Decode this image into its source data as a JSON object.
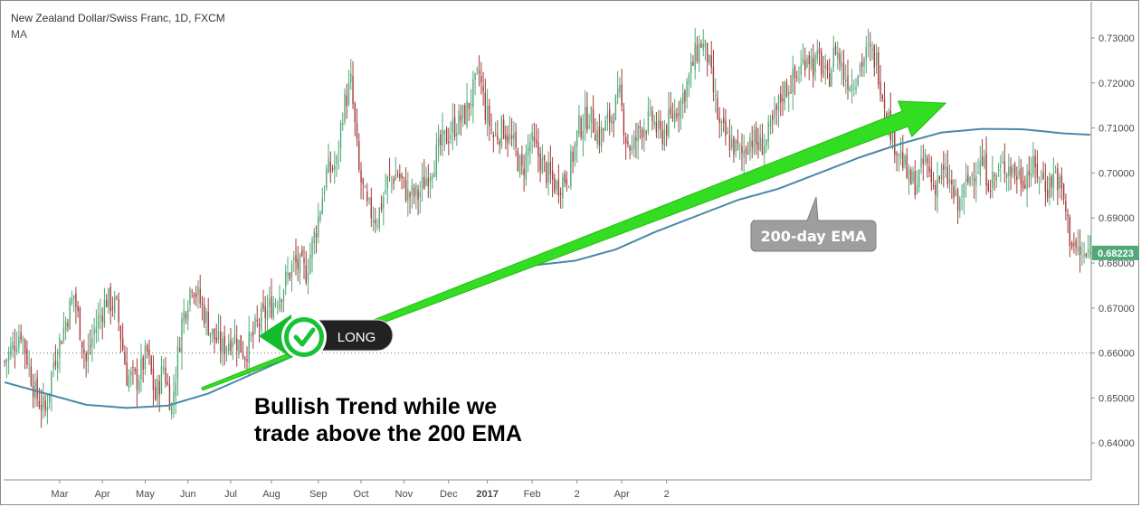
{
  "header": {
    "title": "New Zealand Dollar/Swiss Franc, 1D, FXCM",
    "indicator": "MA"
  },
  "colors": {
    "bull_candle": "#53a878",
    "bear_candle": "#a33b3b",
    "ema_line": "#4a88a8",
    "trend_arrow": "#33dd22",
    "price_badge": "#53a878",
    "callout": "#9e9e9e"
  },
  "chart_data": {
    "type": "candlestick",
    "ylim": [
      0.6355,
      0.7325
    ],
    "y_ticks": [
      "0.73000",
      "0.72000",
      "0.71000",
      "0.70000",
      "0.69000",
      "0.68000",
      "0.67000",
      "0.66000",
      "0.65000",
      "0.64000"
    ],
    "x_tick_labels": [
      "Mar",
      "Apr",
      "May",
      "Jun",
      "Jul",
      "Aug",
      "Sep",
      "Oct",
      "Nov",
      "Dec",
      "2017",
      "Feb",
      "2",
      "Apr",
      "2"
    ],
    "last_price": "0.68223",
    "reference_level": 0.66,
    "close_path": [
      {
        "d": 0,
        "v": 0.658
      },
      {
        "d": 8,
        "v": 0.665
      },
      {
        "d": 15,
        "v": 0.651
      },
      {
        "d": 20,
        "v": 0.647
      },
      {
        "d": 24,
        "v": 0.658
      },
      {
        "d": 34,
        "v": 0.673
      },
      {
        "d": 40,
        "v": 0.658
      },
      {
        "d": 44,
        "v": 0.665
      },
      {
        "d": 50,
        "v": 0.672
      },
      {
        "d": 55,
        "v": 0.67
      },
      {
        "d": 60,
        "v": 0.655
      },
      {
        "d": 65,
        "v": 0.654
      },
      {
        "d": 70,
        "v": 0.66
      },
      {
        "d": 74,
        "v": 0.65
      },
      {
        "d": 78,
        "v": 0.657
      },
      {
        "d": 82,
        "v": 0.648
      },
      {
        "d": 87,
        "v": 0.667
      },
      {
        "d": 92,
        "v": 0.676
      },
      {
        "d": 97,
        "v": 0.67
      },
      {
        "d": 102,
        "v": 0.664
      },
      {
        "d": 107,
        "v": 0.661
      },
      {
        "d": 112,
        "v": 0.664
      },
      {
        "d": 118,
        "v": 0.66
      },
      {
        "d": 124,
        "v": 0.666
      },
      {
        "d": 130,
        "v": 0.67
      },
      {
        "d": 136,
        "v": 0.674
      },
      {
        "d": 142,
        "v": 0.68
      },
      {
        "d": 148,
        "v": 0.678
      },
      {
        "d": 154,
        "v": 0.69
      },
      {
        "d": 158,
        "v": 0.7
      },
      {
        "d": 163,
        "v": 0.702
      },
      {
        "d": 166,
        "v": 0.714
      },
      {
        "d": 170,
        "v": 0.72
      },
      {
        "d": 174,
        "v": 0.7
      },
      {
        "d": 178,
        "v": 0.692
      },
      {
        "d": 183,
        "v": 0.69
      },
      {
        "d": 188,
        "v": 0.698
      },
      {
        "d": 193,
        "v": 0.7
      },
      {
        "d": 198,
        "v": 0.695
      },
      {
        "d": 203,
        "v": 0.695
      },
      {
        "d": 208,
        "v": 0.7
      },
      {
        "d": 214,
        "v": 0.706
      },
      {
        "d": 220,
        "v": 0.71
      },
      {
        "d": 226,
        "v": 0.713
      },
      {
        "d": 230,
        "v": 0.718
      },
      {
        "d": 233,
        "v": 0.722
      },
      {
        "d": 236,
        "v": 0.714
      },
      {
        "d": 240,
        "v": 0.708
      },
      {
        "d": 245,
        "v": 0.71
      },
      {
        "d": 250,
        "v": 0.706
      },
      {
        "d": 254,
        "v": 0.7
      },
      {
        "d": 258,
        "v": 0.707
      },
      {
        "d": 262,
        "v": 0.704
      },
      {
        "d": 266,
        "v": 0.7
      },
      {
        "d": 271,
        "v": 0.697
      },
      {
        "d": 277,
        "v": 0.7
      },
      {
        "d": 282,
        "v": 0.71
      },
      {
        "d": 287,
        "v": 0.713
      },
      {
        "d": 292,
        "v": 0.708
      },
      {
        "d": 297,
        "v": 0.712
      },
      {
        "d": 302,
        "v": 0.717
      },
      {
        "d": 305,
        "v": 0.708
      },
      {
        "d": 308,
        "v": 0.705
      },
      {
        "d": 312,
        "v": 0.71
      },
      {
        "d": 318,
        "v": 0.712
      },
      {
        "d": 322,
        "v": 0.708
      },
      {
        "d": 327,
        "v": 0.712
      },
      {
        "d": 332,
        "v": 0.716
      },
      {
        "d": 336,
        "v": 0.721
      },
      {
        "d": 339,
        "v": 0.726
      },
      {
        "d": 342,
        "v": 0.729
      },
      {
        "d": 345,
        "v": 0.726
      },
      {
        "d": 348,
        "v": 0.718
      },
      {
        "d": 351,
        "v": 0.71
      },
      {
        "d": 354,
        "v": 0.708
      },
      {
        "d": 358,
        "v": 0.706
      },
      {
        "d": 362,
        "v": 0.704
      },
      {
        "d": 366,
        "v": 0.708
      },
      {
        "d": 370,
        "v": 0.706
      },
      {
        "d": 374,
        "v": 0.707
      },
      {
        "d": 378,
        "v": 0.712
      },
      {
        "d": 382,
        "v": 0.718
      },
      {
        "d": 386,
        "v": 0.72
      },
      {
        "d": 390,
        "v": 0.722
      },
      {
        "d": 394,
        "v": 0.727
      },
      {
        "d": 397,
        "v": 0.724
      },
      {
        "d": 400,
        "v": 0.725
      },
      {
        "d": 404,
        "v": 0.72
      },
      {
        "d": 408,
        "v": 0.728
      },
      {
        "d": 412,
        "v": 0.722
      },
      {
        "d": 416,
        "v": 0.72
      },
      {
        "d": 420,
        "v": 0.724
      },
      {
        "d": 424,
        "v": 0.727
      },
      {
        "d": 428,
        "v": 0.725
      },
      {
        "d": 431,
        "v": 0.718
      },
      {
        "d": 434,
        "v": 0.712
      },
      {
        "d": 436,
        "v": 0.708
      },
      {
        "d": 440,
        "v": 0.704
      },
      {
        "d": 444,
        "v": 0.698
      },
      {
        "d": 448,
        "v": 0.698
      },
      {
        "d": 452,
        "v": 0.703
      },
      {
        "d": 456,
        "v": 0.697
      },
      {
        "d": 460,
        "v": 0.7
      },
      {
        "d": 464,
        "v": 0.698
      },
      {
        "d": 468,
        "v": 0.692
      },
      {
        "d": 472,
        "v": 0.697
      },
      {
        "d": 476,
        "v": 0.701
      },
      {
        "d": 480,
        "v": 0.702
      },
      {
        "d": 484,
        "v": 0.698
      },
      {
        "d": 488,
        "v": 0.7
      },
      {
        "d": 492,
        "v": 0.702
      },
      {
        "d": 496,
        "v": 0.7
      },
      {
        "d": 500,
        "v": 0.699
      },
      {
        "d": 504,
        "v": 0.701
      },
      {
        "d": 508,
        "v": 0.7
      },
      {
        "d": 512,
        "v": 0.697
      },
      {
        "d": 516,
        "v": 0.7
      },
      {
        "d": 520,
        "v": 0.694
      },
      {
        "d": 523,
        "v": 0.686
      },
      {
        "d": 526,
        "v": 0.683
      },
      {
        "d": 529,
        "v": 0.681
      },
      {
        "d": 533,
        "v": 0.682
      }
    ],
    "ema_200": [
      {
        "d": 0,
        "v": 0.6535
      },
      {
        "d": 20,
        "v": 0.651
      },
      {
        "d": 40,
        "v": 0.6485
      },
      {
        "d": 60,
        "v": 0.6478
      },
      {
        "d": 80,
        "v": 0.6483
      },
      {
        "d": 100,
        "v": 0.651
      },
      {
        "d": 120,
        "v": 0.655
      },
      {
        "d": 140,
        "v": 0.659
      },
      {
        "d": 160,
        "v": 0.663
      },
      {
        "d": 180,
        "v": 0.6665
      },
      {
        "d": 200,
        "v": 0.67
      },
      {
        "d": 220,
        "v": 0.674
      },
      {
        "d": 240,
        "v": 0.677
      },
      {
        "d": 260,
        "v": 0.6795
      },
      {
        "d": 280,
        "v": 0.6805
      },
      {
        "d": 300,
        "v": 0.683
      },
      {
        "d": 320,
        "v": 0.687
      },
      {
        "d": 340,
        "v": 0.6905
      },
      {
        "d": 360,
        "v": 0.694
      },
      {
        "d": 380,
        "v": 0.6965
      },
      {
        "d": 400,
        "v": 0.7
      },
      {
        "d": 420,
        "v": 0.7035
      },
      {
        "d": 440,
        "v": 0.7065
      },
      {
        "d": 460,
        "v": 0.709
      },
      {
        "d": 480,
        "v": 0.7098
      },
      {
        "d": 500,
        "v": 0.7097
      },
      {
        "d": 520,
        "v": 0.7088
      },
      {
        "d": 533,
        "v": 0.7085
      }
    ],
    "annotations": {
      "ema_label": "200-day EMA",
      "long_label": "LONG",
      "caption_line1": "Bullish Trend while we",
      "caption_line2": "trade above the 200 EMA",
      "trend_arrow": {
        "from_day": 97,
        "from_value": 0.652,
        "to_day": 462,
        "to_value": 0.7155
      }
    }
  }
}
